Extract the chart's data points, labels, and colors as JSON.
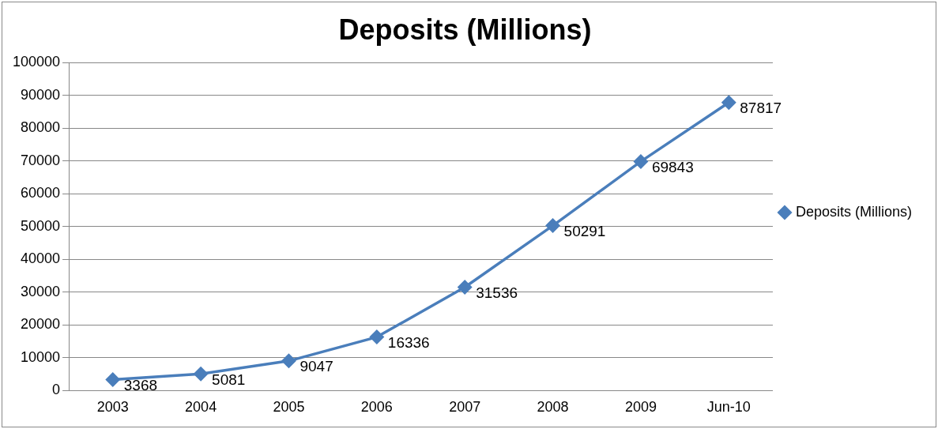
{
  "chart_data": {
    "type": "line",
    "title": "Deposits (Millions)",
    "categories": [
      "2003",
      "2004",
      "2005",
      "2006",
      "2007",
      "2008",
      "2009",
      "Jun-10"
    ],
    "series": [
      {
        "name": "Deposits (Millions)",
        "color": "#4a7ebb",
        "values": [
          3368,
          5081,
          9047,
          16336,
          31536,
          50291,
          69843,
          87817
        ]
      }
    ],
    "ylim": [
      0,
      100000
    ],
    "yticks": [
      0,
      10000,
      20000,
      30000,
      40000,
      50000,
      60000,
      70000,
      80000,
      90000,
      100000
    ],
    "grid": "y",
    "legend": "right",
    "marker": "diamond",
    "line_style": "solid",
    "data_labels": true
  }
}
